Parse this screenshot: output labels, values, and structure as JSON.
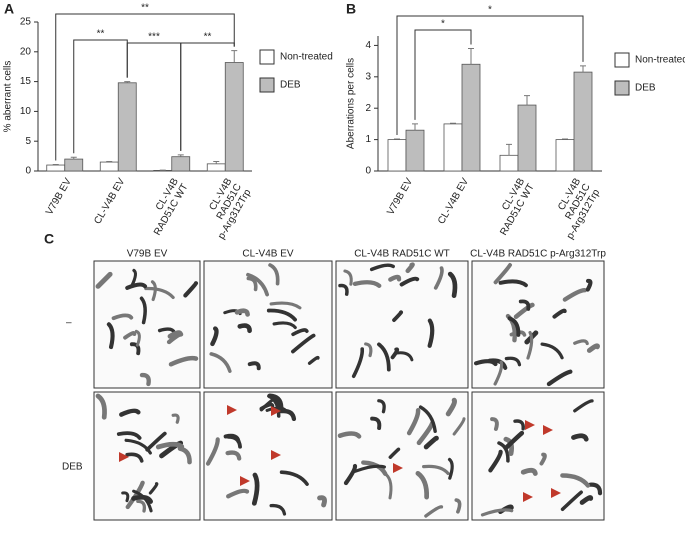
{
  "chart_data": [
    {
      "type": "bar",
      "panel": "A",
      "ylabel": "% aberrant cells",
      "categories": [
        [
          "V79B EV"
        ],
        [
          "CL-V4B EV"
        ],
        [
          "CL-V4B",
          "RAD51C WT"
        ],
        [
          "CL-V4B",
          "RAD51C",
          "p-Arg312Trp"
        ]
      ],
      "series": [
        {
          "name": "Non-treated",
          "color": "#ffffff",
          "values": [
            1.0,
            1.5,
            0.1,
            1.2
          ],
          "errors": [
            0.1,
            0.1,
            0.05,
            0.4
          ]
        },
        {
          "name": "DEB",
          "color": "#bdbdbd",
          "values": [
            2.0,
            14.8,
            2.4,
            18.2
          ],
          "errors": [
            0.3,
            0.2,
            0.3,
            2.0
          ]
        }
      ],
      "ylim": [
        0,
        25
      ],
      "yticks": [
        0,
        5,
        10,
        15,
        20,
        25
      ],
      "annotations": [
        "**",
        "***",
        "**",
        "**"
      ]
    },
    {
      "type": "bar",
      "panel": "B",
      "ylabel": "Aberrations per cells",
      "categories": [
        [
          "V79B EV"
        ],
        [
          "CL-V4B EV"
        ],
        [
          "CL-V4B",
          "RAD51C WT"
        ],
        [
          "CL-V4B",
          "RAD51C",
          "p-Arg312Trp"
        ]
      ],
      "series": [
        {
          "name": "Non-treated",
          "color": "#ffffff",
          "values": [
            1.0,
            1.5,
            0.5,
            1.0
          ],
          "errors": [
            0.02,
            0.02,
            0.35,
            0.02
          ]
        },
        {
          "name": "DEB",
          "color": "#bdbdbd",
          "values": [
            1.3,
            3.4,
            2.1,
            3.15
          ],
          "errors": [
            0.2,
            0.5,
            0.3,
            0.2
          ]
        }
      ],
      "ylim": [
        0,
        4.3
      ],
      "yticks": [
        0,
        1,
        2,
        3,
        4
      ],
      "annotations": [
        "*",
        "*"
      ]
    }
  ],
  "panel_c": {
    "panel": "C",
    "columns": [
      "V79B EV",
      "CL-V4B EV",
      "CL-V4B RAD51C WT",
      "CL-V4B RAD51C p-Arg312Trp"
    ],
    "rows": [
      "–",
      "DEB"
    ]
  }
}
